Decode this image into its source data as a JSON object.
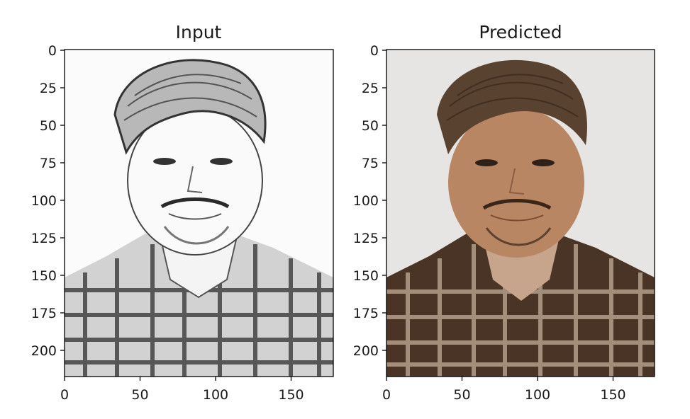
{
  "chart_data": [
    {
      "type": "image",
      "title": "Input",
      "content": "pencil sketch portrait",
      "xlim": [
        0,
        178
      ],
      "ylim": [
        218,
        0
      ],
      "xticks": [
        0,
        50,
        100,
        150
      ],
      "yticks": [
        0,
        25,
        50,
        75,
        100,
        125,
        150,
        175,
        200
      ],
      "palette": {
        "background": "#fbfbfb",
        "ink": "#2b2b2b",
        "mid": "#8c8c8c"
      }
    },
    {
      "type": "image",
      "title": "Predicted",
      "content": "colorized portrait",
      "xlim": [
        0,
        178
      ],
      "ylim": [
        218,
        0
      ],
      "xticks": [
        0,
        50,
        100,
        150
      ],
      "yticks": [
        0,
        25,
        50,
        75,
        100,
        125,
        150,
        175,
        200
      ],
      "palette": {
        "background": "#e6e5e3",
        "hair": "#5a4230",
        "skin": "#b98664",
        "shirt": "#4a3426",
        "shirt_light": "#c9b3a0"
      }
    }
  ]
}
